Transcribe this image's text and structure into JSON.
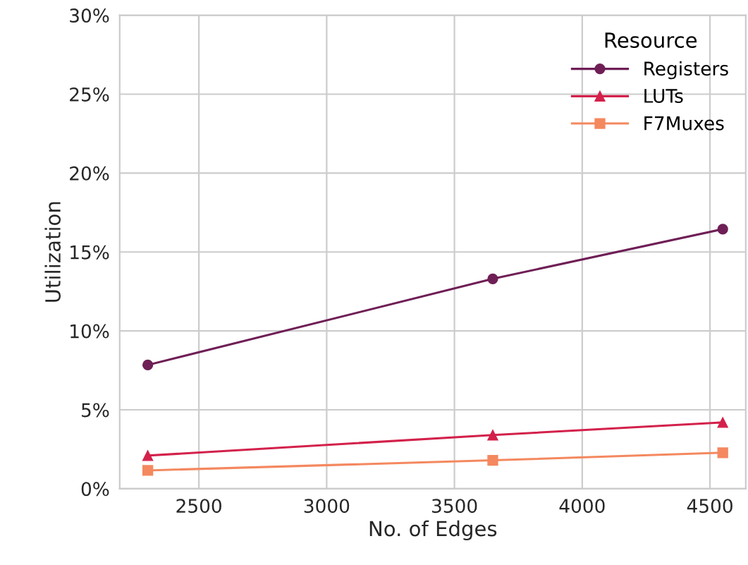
{
  "chart_data": {
    "type": "line",
    "xlabel": "No. of Edges",
    "ylabel": "Utilization",
    "legend_title": "Resource",
    "legend": "top right",
    "grid": true,
    "line_style": "solid",
    "x": [
      2300,
      3650,
      4550
    ],
    "series": [
      {
        "name": "Registers",
        "color": "#6f1f56",
        "marker": "circle",
        "values": [
          7.84,
          13.3,
          16.45
        ]
      },
      {
        "name": "LUTs",
        "color": "#d3214b",
        "marker": "triangle",
        "values": [
          2.1,
          3.4,
          4.2
        ]
      },
      {
        "name": "F7Muxes",
        "color": "#f4885f",
        "marker": "square",
        "values": [
          1.16,
          1.8,
          2.28
        ]
      }
    ],
    "xlim": [
      2190,
      4640
    ],
    "xticks": [
      2500,
      3000,
      3500,
      4000,
      4500
    ],
    "ylim": [
      0,
      30
    ],
    "yticks": [
      {
        "value": 0,
        "label": "0%"
      },
      {
        "value": 5,
        "label": "5%"
      },
      {
        "value": 10,
        "label": "10%"
      },
      {
        "value": 15,
        "label": "15%"
      },
      {
        "value": 20,
        "label": "20%"
      },
      {
        "value": 25,
        "label": "25%"
      },
      {
        "value": 30,
        "label": "30%"
      }
    ]
  }
}
